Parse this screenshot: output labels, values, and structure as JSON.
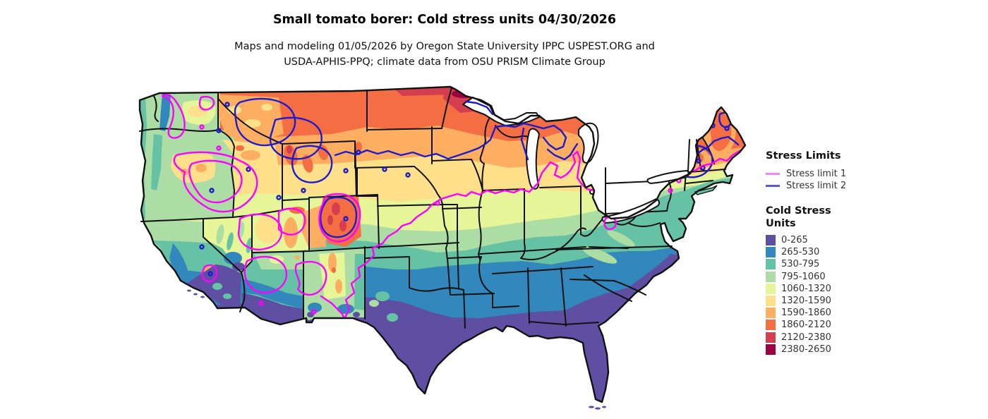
{
  "title": "Small tomato borer: Cold stress units 04/30/2026",
  "subtitle_line1": "Maps and modeling 01/05/2026 by Oregon State University IPPC USPEST.ORG and",
  "subtitle_line2": "USDA-APHIS-PPQ; climate data from OSU PRISM Climate Group",
  "legend": {
    "stress_limits_title": "Stress Limits",
    "limits": [
      {
        "label": "Stress limit 1",
        "color": "#fd7dfd"
      },
      {
        "label": "Stress limit 2",
        "color": "#5a5ad1"
      }
    ],
    "cold_stress_title_line1": "Cold Stress",
    "cold_stress_title_line2": "Units",
    "classes": [
      {
        "label": "0-265",
        "color": "#5e4fa2"
      },
      {
        "label": "265-530",
        "color": "#3288bd"
      },
      {
        "label": "530-795",
        "color": "#66c2a5"
      },
      {
        "label": "795-1060",
        "color": "#abdda4"
      },
      {
        "label": "1060-1320",
        "color": "#e6f598"
      },
      {
        "label": "1320-1590",
        "color": "#fee08b"
      },
      {
        "label": "1590-1860",
        "color": "#fdae61"
      },
      {
        "label": "1860-2120",
        "color": "#f46d43"
      },
      {
        "label": "2120-2380",
        "color": "#d53e4f"
      },
      {
        "label": "2380-2650",
        "color": "#9e0142"
      }
    ]
  },
  "map": {
    "contour1_color": "#ff00ff",
    "contour2_color": "#1c1ccd",
    "border_color": "#111111",
    "water_color": "#ffffff"
  }
}
